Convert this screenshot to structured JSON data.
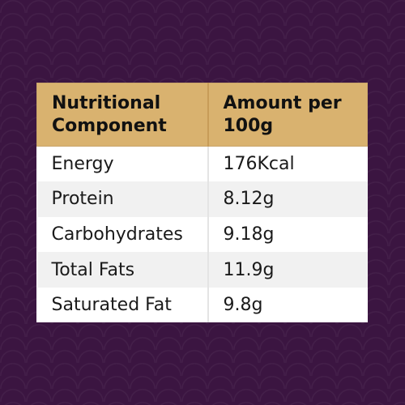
{
  "table": {
    "headers": [
      "Nutritional Component",
      "Amount per 100g"
    ],
    "rows": [
      [
        "Energy",
        "176Kcal"
      ],
      [
        "Protein",
        "8.12g"
      ],
      [
        "Carbohydrates",
        "9.18g"
      ],
      [
        "Total Fats",
        "11.9g"
      ],
      [
        "Saturated Fat",
        "9.8g"
      ]
    ]
  },
  "colors": {
    "background": "#3b1541",
    "header": "#d9b26f",
    "row_alt": "#f1f1f1"
  }
}
